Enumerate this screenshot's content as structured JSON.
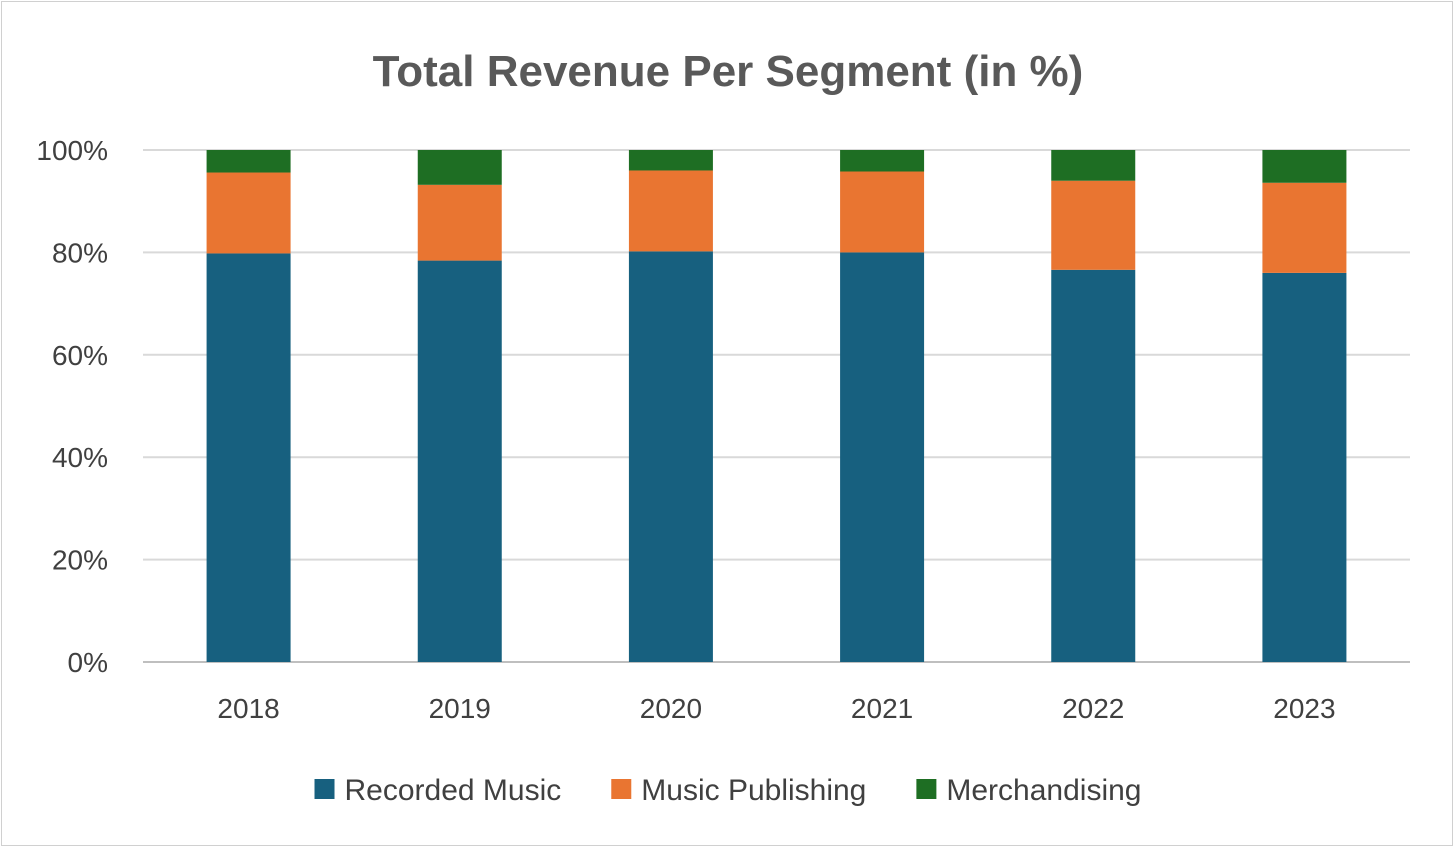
{
  "chart_data": {
    "type": "bar",
    "stacked": true,
    "title": "Total Revenue Per Segment (in %)",
    "xlabel": "",
    "ylabel": "",
    "categories": [
      "2018",
      "2019",
      "2020",
      "2021",
      "2022",
      "2023"
    ],
    "series": [
      {
        "name": "Recorded Music",
        "color": "#17607f",
        "values": [
          79.8,
          78.4,
          80.2,
          80.0,
          76.6,
          76.0
        ]
      },
      {
        "name": "Music Publishing",
        "color": "#e97531",
        "values": [
          15.8,
          14.8,
          15.8,
          15.8,
          17.4,
          17.6
        ]
      },
      {
        "name": "Merchandising",
        "color": "#1e6e23",
        "values": [
          4.4,
          6.8,
          4.0,
          4.2,
          6.0,
          6.4
        ]
      }
    ],
    "ylim": [
      0,
      100
    ],
    "yticks": [
      "0%",
      "20%",
      "40%",
      "60%",
      "80%",
      "100%"
    ],
    "grid": true,
    "legend": "bottom"
  }
}
